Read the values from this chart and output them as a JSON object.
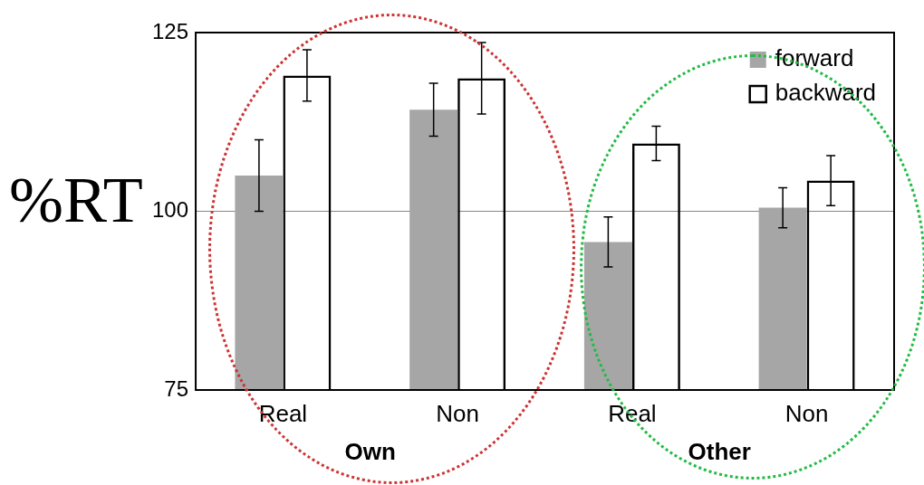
{
  "chart_data": {
    "type": "bar",
    "ylabel": "%RT",
    "categories": [
      "Real",
      "Non",
      "Real",
      "Non"
    ],
    "series": [
      {
        "name": "forward",
        "color": "#a6a6a6",
        "values": [
          105,
          114.2,
          95.7,
          100.5
        ],
        "errors": [
          5,
          3.7,
          3.5,
          2.8
        ]
      },
      {
        "name": "backward",
        "color": "#000000",
        "values": [
          119,
          118.6,
          109.5,
          104.3
        ],
        "errors": [
          3.6,
          5,
          2.4,
          3.5
        ]
      }
    ],
    "annotations": [
      "Own",
      "Other"
    ],
    "ylim": [
      75,
      125
    ],
    "yticks": [
      75,
      100,
      125
    ],
    "grid": "y",
    "legend": "top right"
  }
}
